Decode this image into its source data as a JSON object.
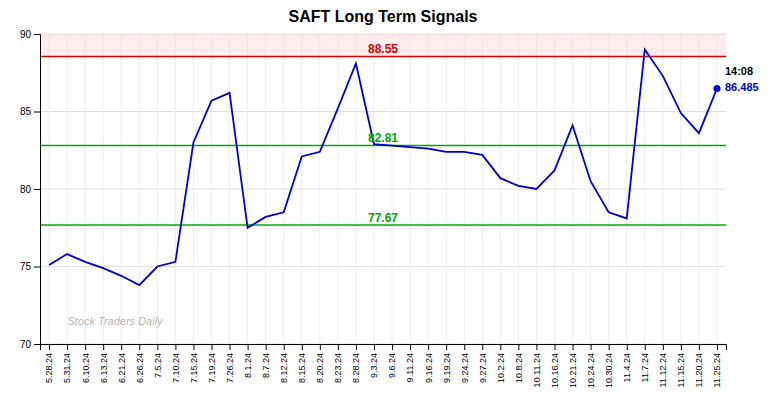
{
  "chart_data": {
    "type": "line",
    "title": "SAFT Long Term Signals",
    "categories": [
      "5.28.24",
      "5.31.24",
      "6.10.24",
      "6.13.24",
      "6.21.24",
      "6.26.24",
      "7.5.24",
      "7.10.24",
      "7.15.24",
      "7.19.24",
      "7.26.24",
      "8.1.24",
      "8.7.24",
      "8.12.24",
      "8.15.24",
      "8.20.24",
      "8.23.24",
      "8.28.24",
      "9.3.24",
      "9.6.24",
      "9.11.24",
      "9.16.24",
      "9.19.24",
      "9.24.24",
      "9.27.24",
      "10.2.24",
      "10.8.24",
      "10.11.24",
      "10.16.24",
      "10.21.24",
      "10.24.24",
      "10.30.24",
      "11.4.24",
      "11.7.24",
      "11.12.24",
      "11.15.24",
      "11.20.24",
      "11.25.24"
    ],
    "values": [
      75.1,
      75.8,
      75.3,
      74.9,
      74.4,
      73.8,
      75.0,
      75.3,
      83.0,
      85.7,
      86.2,
      77.5,
      78.2,
      78.5,
      82.1,
      82.4,
      85.2,
      88.1,
      82.9,
      82.8,
      82.7,
      82.6,
      82.4,
      82.4,
      82.2,
      80.7,
      80.2,
      80.0,
      81.2,
      84.1,
      80.5,
      78.5,
      78.1,
      89.0,
      87.3,
      84.9,
      83.6,
      86.485
    ],
    "color": "#0000cc",
    "ylim": [
      70,
      90
    ],
    "yticks": [
      70,
      75,
      80,
      85,
      90
    ],
    "grid": true,
    "reference_lines": [
      {
        "value": 88.55,
        "label": "88.55",
        "color": "#dd0000"
      },
      {
        "value": 82.81,
        "label": "82.81",
        "color": "#00aa00"
      },
      {
        "value": 77.67,
        "label": "77.67",
        "color": "#00aa00"
      }
    ],
    "bands": [
      {
        "from": 88.55,
        "to": 90,
        "color": "#ffcccc"
      }
    ],
    "annotations": [
      {
        "text": "14:08",
        "at": "11.25.24"
      }
    ],
    "watermark": "Stock Traders Daily"
  }
}
